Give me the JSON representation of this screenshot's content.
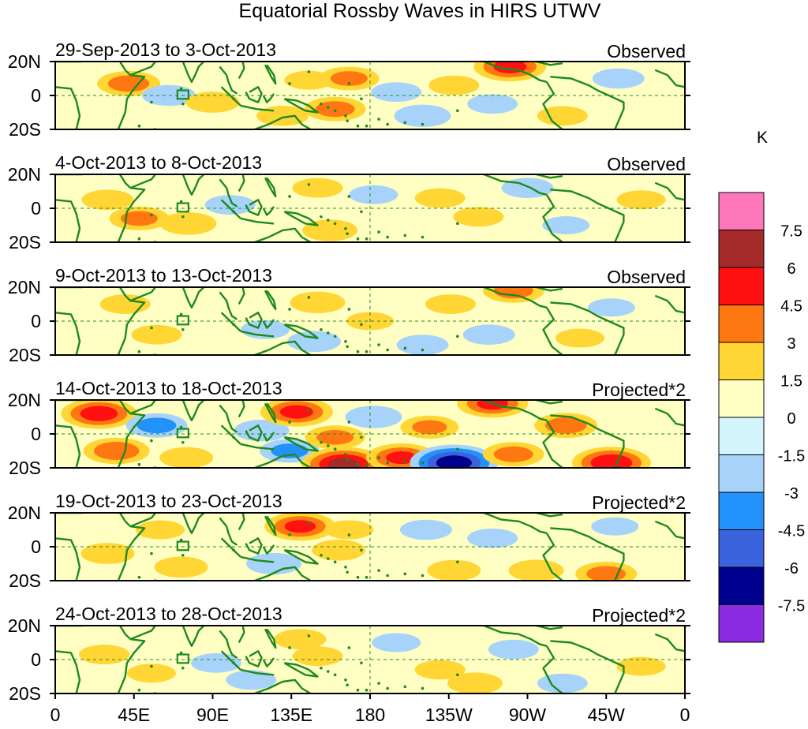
{
  "chart_data": {
    "type": "heatmap",
    "title": "Equatorial Rossby Waves in HIRS UTWV",
    "colorbar": {
      "unit": "K",
      "tick_labels": [
        "7.5",
        "6",
        "4.5",
        "3",
        "1.5",
        "0",
        "-1.5",
        "-3",
        "-4.5",
        "-6",
        "-7.5"
      ],
      "colors": [
        "#ff77bb",
        "#a52a2a",
        "#ff1111",
        "#ff7711",
        "#ffd633",
        "#ffffc4",
        "#d4f4fb",
        "#a7d3fb",
        "#2291fa",
        "#3a63dd",
        "#00008f",
        "#8a2be2"
      ],
      "bounds": [
        -9,
        -7.5,
        -6,
        -4.5,
        -3,
        -1.5,
        0,
        1.5,
        3,
        4.5,
        6,
        7.5,
        9
      ]
    },
    "x_axis": {
      "tick_labels": [
        "0",
        "45E",
        "90E",
        "135E",
        "180",
        "135W",
        "90W",
        "45W",
        "0"
      ],
      "range_deg_east": [
        0,
        360
      ]
    },
    "y_axis": {
      "tick_labels": [
        "20N",
        "0",
        "20S"
      ],
      "range_deg": [
        -20,
        20
      ]
    },
    "panels": [
      {
        "date_range": "29-Sep-2013 to 3-Oct-2013",
        "label": "Observed",
        "features": [
          {
            "lon": 42,
            "lat": 7,
            "value": 3.6
          },
          {
            "lon": 65,
            "lat": 0,
            "value": -2.4
          },
          {
            "lon": 90,
            "lat": -4,
            "value": 2.4
          },
          {
            "lon": 130,
            "lat": -12,
            "value": 2.2
          },
          {
            "lon": 145,
            "lat": 9,
            "value": 1.8
          },
          {
            "lon": 160,
            "lat": -8,
            "value": 3.4
          },
          {
            "lon": 168,
            "lat": 10,
            "value": 3.2
          },
          {
            "lon": 195,
            "lat": 2,
            "value": -2.0
          },
          {
            "lon": 210,
            "lat": -12,
            "value": -2.8
          },
          {
            "lon": 228,
            "lat": 6,
            "value": 2.0
          },
          {
            "lon": 250,
            "lat": -5,
            "value": -2.0
          },
          {
            "lon": 260,
            "lat": 17,
            "value": 4.8
          },
          {
            "lon": 290,
            "lat": -12,
            "value": 2.0
          },
          {
            "lon": 322,
            "lat": 10,
            "value": -2.2
          }
        ]
      },
      {
        "date_range": "4-Oct-2013 to 8-Oct-2013",
        "label": "Observed",
        "features": [
          {
            "lon": 30,
            "lat": 5,
            "value": 2.2
          },
          {
            "lon": 48,
            "lat": -6,
            "value": 3.2
          },
          {
            "lon": 76,
            "lat": -9,
            "value": 2.8
          },
          {
            "lon": 100,
            "lat": 2,
            "value": -2.0
          },
          {
            "lon": 150,
            "lat": 12,
            "value": 2.0
          },
          {
            "lon": 157,
            "lat": -13,
            "value": 2.6
          },
          {
            "lon": 182,
            "lat": 8,
            "value": -1.8
          },
          {
            "lon": 220,
            "lat": 6,
            "value": 2.0
          },
          {
            "lon": 242,
            "lat": -5,
            "value": 2.0
          },
          {
            "lon": 270,
            "lat": 12,
            "value": -2.2
          },
          {
            "lon": 292,
            "lat": -10,
            "value": -1.6
          },
          {
            "lon": 335,
            "lat": 5,
            "value": 1.8
          }
        ]
      },
      {
        "date_range": "9-Oct-2013 to 13-Oct-2013",
        "label": "Observed",
        "features": [
          {
            "lon": 40,
            "lat": 10,
            "value": 2.0
          },
          {
            "lon": 58,
            "lat": -8,
            "value": 2.0
          },
          {
            "lon": 120,
            "lat": -5,
            "value": -1.8
          },
          {
            "lon": 150,
            "lat": 11,
            "value": 2.6
          },
          {
            "lon": 148,
            "lat": -12,
            "value": -2.4
          },
          {
            "lon": 180,
            "lat": 0,
            "value": 1.6
          },
          {
            "lon": 210,
            "lat": -14,
            "value": -2.2
          },
          {
            "lon": 226,
            "lat": 10,
            "value": 2.0
          },
          {
            "lon": 248,
            "lat": -8,
            "value": -2.2
          },
          {
            "lon": 262,
            "lat": 18,
            "value": 3.4
          },
          {
            "lon": 300,
            "lat": -10,
            "value": 1.8
          },
          {
            "lon": 318,
            "lat": 8,
            "value": -1.6
          }
        ]
      },
      {
        "date_range": "14-Oct-2013 to 18-Oct-2013",
        "label": "Projected*2",
        "features": [
          {
            "lon": 25,
            "lat": 12,
            "value": 5.2
          },
          {
            "lon": 35,
            "lat": -10,
            "value": 4.0
          },
          {
            "lon": 58,
            "lat": 5,
            "value": -3.4
          },
          {
            "lon": 75,
            "lat": -14,
            "value": 2.4
          },
          {
            "lon": 118,
            "lat": 2,
            "value": -2.6
          },
          {
            "lon": 138,
            "lat": 13,
            "value": 4.8
          },
          {
            "lon": 134,
            "lat": -10,
            "value": -3.2
          },
          {
            "lon": 160,
            "lat": -2,
            "value": 3.2
          },
          {
            "lon": 165,
            "lat": -18,
            "value": 6.4
          },
          {
            "lon": 182,
            "lat": 10,
            "value": -2.8
          },
          {
            "lon": 198,
            "lat": -14,
            "value": 4.6
          },
          {
            "lon": 214,
            "lat": 4,
            "value": 3.0
          },
          {
            "lon": 228,
            "lat": -17,
            "value": -6.8
          },
          {
            "lon": 250,
            "lat": 18,
            "value": 4.6
          },
          {
            "lon": 262,
            "lat": -12,
            "value": 3.4
          },
          {
            "lon": 292,
            "lat": 5,
            "value": 3.6
          },
          {
            "lon": 318,
            "lat": -17,
            "value": 5.6
          }
        ]
      },
      {
        "date_range": "19-Oct-2013 to 23-Oct-2013",
        "label": "Projected*2",
        "features": [
          {
            "lon": 30,
            "lat": -4,
            "value": 2.4
          },
          {
            "lon": 60,
            "lat": 10,
            "value": 1.8
          },
          {
            "lon": 72,
            "lat": -12,
            "value": 2.4
          },
          {
            "lon": 125,
            "lat": -10,
            "value": -2.6
          },
          {
            "lon": 140,
            "lat": 12,
            "value": 4.6
          },
          {
            "lon": 162,
            "lat": -2,
            "value": 2.4
          },
          {
            "lon": 168,
            "lat": 10,
            "value": 1.8
          },
          {
            "lon": 212,
            "lat": 10,
            "value": -2.2
          },
          {
            "lon": 228,
            "lat": -14,
            "value": 2.4
          },
          {
            "lon": 250,
            "lat": 5,
            "value": -2.0
          },
          {
            "lon": 275,
            "lat": -14,
            "value": 2.6
          },
          {
            "lon": 315,
            "lat": -16,
            "value": 3.4
          },
          {
            "lon": 320,
            "lat": 12,
            "value": -1.6
          }
        ]
      },
      {
        "date_range": "24-Oct-2013 to 28-Oct-2013",
        "label": "Projected*2",
        "features": [
          {
            "lon": 28,
            "lat": 3,
            "value": 2.0
          },
          {
            "lon": 55,
            "lat": -8,
            "value": 1.8
          },
          {
            "lon": 92,
            "lat": -2,
            "value": -2.0
          },
          {
            "lon": 112,
            "lat": -12,
            "value": -2.0
          },
          {
            "lon": 140,
            "lat": 12,
            "value": 2.2
          },
          {
            "lon": 150,
            "lat": 2,
            "value": 2.0
          },
          {
            "lon": 195,
            "lat": 10,
            "value": -1.8
          },
          {
            "lon": 220,
            "lat": -6,
            "value": 2.0
          },
          {
            "lon": 240,
            "lat": -14,
            "value": 2.6
          },
          {
            "lon": 262,
            "lat": 6,
            "value": -2.0
          },
          {
            "lon": 290,
            "lat": -14,
            "value": -2.0
          },
          {
            "lon": 335,
            "lat": -4,
            "value": 1.8
          }
        ]
      }
    ]
  }
}
